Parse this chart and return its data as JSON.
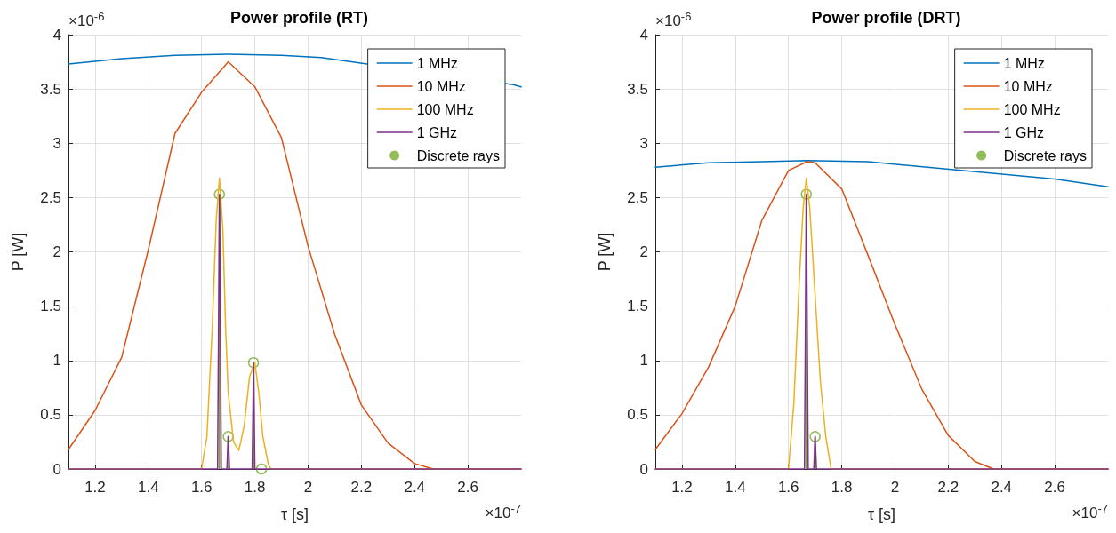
{
  "chart_data": [
    {
      "type": "line",
      "title": "Power profile (RT)",
      "xlabel": "τ [s]",
      "ylabel": "P [W]",
      "annotations": [
        "×10$^{-6}$",
        "×10$^{-7}$"
      ],
      "xlim": [
        1.1,
        2.8
      ],
      "xticks": [
        1.2,
        1.4,
        1.6,
        1.8,
        2,
        2.2,
        2.4,
        2.6
      ],
      "ylim": [
        0,
        4
      ],
      "yticks": [
        0,
        0.5,
        1,
        1.5,
        2,
        2.5,
        3,
        3.5,
        4
      ],
      "grid": true,
      "legend": "top right",
      "series": [
        {
          "name": "1 MHz",
          "color": "#0072bd",
          "x": [
            1.1,
            1.3,
            1.5,
            1.7,
            1.9,
            2.05,
            2.77,
            2.8
          ],
          "values": [
            3.73,
            3.78,
            3.81,
            3.82,
            3.81,
            3.79,
            3.54,
            3.52
          ]
        },
        {
          "name": "10 MHz",
          "color": "#d95319",
          "x": [
            1.1,
            1.2,
            1.3,
            1.4,
            1.5,
            1.6,
            1.7,
            1.8,
            1.9,
            2.0,
            2.1,
            2.2,
            2.3,
            2.4,
            2.47,
            2.8
          ],
          "values": [
            0.18,
            0.54,
            1.03,
            2.02,
            3.09,
            3.47,
            3.75,
            3.52,
            3.05,
            2.05,
            1.24,
            0.59,
            0.24,
            0.05,
            0,
            0
          ]
        },
        {
          "name": "100 MHz",
          "color": "#edb120",
          "x": [
            1.1,
            1.6,
            1.62,
            1.64,
            1.655,
            1.667,
            1.68,
            1.69,
            1.7,
            1.72,
            1.74,
            1.76,
            1.78,
            1.8,
            1.815,
            1.83,
            1.85,
            1.86,
            2.8
          ],
          "values": [
            0,
            0,
            0.3,
            1.3,
            2.3,
            2.68,
            2.2,
            1.3,
            0.7,
            0.25,
            0.17,
            0.4,
            0.85,
            0.98,
            0.7,
            0.3,
            0.05,
            0,
            0
          ]
        },
        {
          "name": "1 GHz",
          "color": "#7e2f8e",
          "x": [
            1.1,
            1.66,
            1.667,
            1.674,
            1.695,
            1.7,
            1.705,
            1.79,
            1.795,
            1.8,
            2.8
          ],
          "values": [
            0,
            0,
            2.53,
            0,
            0,
            0.3,
            0,
            0,
            0.98,
            0,
            0
          ]
        },
        {
          "name": "Discrete rays",
          "type": "lollipop",
          "color": "#77ac30",
          "marker": "circle",
          "x": [
            1.667,
            1.7,
            1.795,
            1.825
          ],
          "values": [
            2.53,
            0.3,
            0.98,
            0
          ]
        }
      ]
    },
    {
      "type": "line",
      "title": "Power profile (DRT)",
      "xlabel": "τ [s]",
      "ylabel": "P [W]",
      "annotations": [
        "×10$^{-6}$",
        "×10$^{-7}$"
      ],
      "xlim": [
        1.1,
        2.8
      ],
      "xticks": [
        1.2,
        1.4,
        1.6,
        1.8,
        2,
        2.2,
        2.4,
        2.6
      ],
      "ylim": [
        0,
        4
      ],
      "yticks": [
        0,
        0.5,
        1,
        1.5,
        2,
        2.5,
        3,
        3.5,
        4
      ],
      "grid": true,
      "legend": "top right",
      "series": [
        {
          "name": "1 MHz",
          "color": "#0072bd",
          "x": [
            1.1,
            1.3,
            1.5,
            1.67,
            1.9,
            2.6,
            2.8
          ],
          "values": [
            2.78,
            2.82,
            2.83,
            2.84,
            2.83,
            2.67,
            2.6
          ]
        },
        {
          "name": "10 MHz",
          "color": "#d95319",
          "x": [
            1.1,
            1.2,
            1.3,
            1.4,
            1.5,
            1.6,
            1.67,
            1.7,
            1.8,
            1.9,
            2.0,
            2.1,
            2.2,
            2.3,
            2.37,
            2.8
          ],
          "values": [
            0.18,
            0.51,
            0.94,
            1.5,
            2.29,
            2.75,
            2.83,
            2.82,
            2.58,
            1.96,
            1.33,
            0.74,
            0.31,
            0.07,
            0,
            0
          ]
        },
        {
          "name": "100 MHz",
          "color": "#edb120",
          "x": [
            1.1,
            1.6,
            1.62,
            1.64,
            1.655,
            1.667,
            1.68,
            1.7,
            1.72,
            1.74,
            1.76,
            2.8
          ],
          "values": [
            0,
            0,
            0.6,
            1.7,
            2.4,
            2.68,
            2.4,
            1.6,
            0.8,
            0.3,
            0,
            0
          ]
        },
        {
          "name": "1 GHz",
          "color": "#7e2f8e",
          "x": [
            1.1,
            1.66,
            1.667,
            1.674,
            1.695,
            1.7,
            1.705,
            2.8
          ],
          "values": [
            0,
            0,
            2.53,
            0,
            0,
            0.3,
            0,
            0
          ]
        },
        {
          "name": "Discrete rays",
          "type": "lollipop",
          "color": "#77ac30",
          "marker": "circle",
          "x": [
            1.667,
            1.7
          ],
          "values": [
            2.53,
            0.3
          ]
        }
      ]
    }
  ]
}
